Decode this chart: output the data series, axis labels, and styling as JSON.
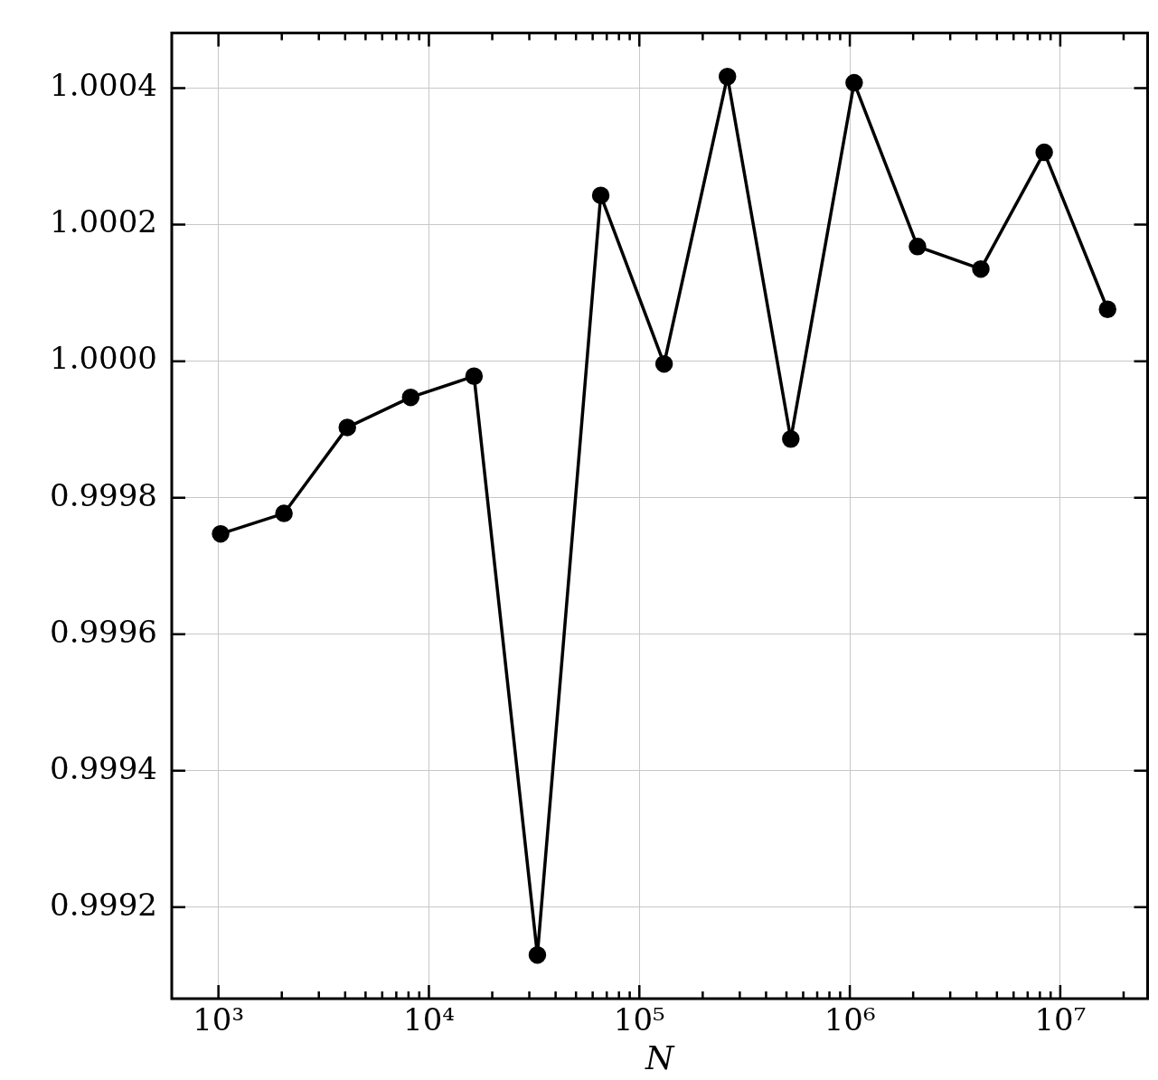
{
  "chart_data": {
    "type": "line",
    "xlabel": "N",
    "x": [
      1024,
      2048,
      4096,
      8192,
      16384,
      32768,
      65536,
      131072,
      262144,
      524288,
      1048576,
      2097152,
      4194304,
      8388608,
      16777216
    ],
    "series": [
      {
        "color": "#000000",
        "values": [
          0.999747,
          0.999777,
          0.999903,
          0.999947,
          0.999978,
          0.99913,
          1.000243,
          0.999996,
          1.000417,
          0.999886,
          1.000408,
          1.000168,
          1.000135,
          1.000306,
          1.000076
        ]
      }
    ],
    "log": "x",
    "marker": "circle",
    "line_style": "solid",
    "grid": true,
    "legend": false,
    "xlim": [
      600,
      26000000
    ],
    "xticks": [
      {
        "value": 1000,
        "label": "10³"
      },
      {
        "value": 2000,
        "label": null
      },
      {
        "value": 3000,
        "label": null
      },
      {
        "value": 4000,
        "label": null
      },
      {
        "value": 5000,
        "label": null
      },
      {
        "value": 6000,
        "label": null
      },
      {
        "value": 7000,
        "label": null
      },
      {
        "value": 8000,
        "label": null
      },
      {
        "value": 9000,
        "label": null
      },
      {
        "value": 10000,
        "label": "10⁴"
      },
      {
        "value": 20000,
        "label": null
      },
      {
        "value": 30000,
        "label": null
      },
      {
        "value": 40000,
        "label": null
      },
      {
        "value": 50000,
        "label": null
      },
      {
        "value": 60000,
        "label": null
      },
      {
        "value": 70000,
        "label": null
      },
      {
        "value": 80000,
        "label": null
      },
      {
        "value": 90000,
        "label": null
      },
      {
        "value": 100000,
        "label": "10⁵"
      },
      {
        "value": 200000,
        "label": null
      },
      {
        "value": 300000,
        "label": null
      },
      {
        "value": 400000,
        "label": null
      },
      {
        "value": 500000,
        "label": null
      },
      {
        "value": 600000,
        "label": null
      },
      {
        "value": 700000,
        "label": null
      },
      {
        "value": 800000,
        "label": null
      },
      {
        "value": 900000,
        "label": null
      },
      {
        "value": 1000000,
        "label": "10⁶"
      },
      {
        "value": 2000000,
        "label": null
      },
      {
        "value": 3000000,
        "label": null
      },
      {
        "value": 4000000,
        "label": null
      },
      {
        "value": 5000000,
        "label": null
      },
      {
        "value": 6000000,
        "label": null
      },
      {
        "value": 7000000,
        "label": null
      },
      {
        "value": 8000000,
        "label": null
      },
      {
        "value": 9000000,
        "label": null
      },
      {
        "value": 10000000,
        "label": "10⁷"
      },
      {
        "value": 20000000,
        "label": null
      }
    ],
    "ylim": [
      0.999066,
      1.000481
    ],
    "yticks": [
      {
        "value": 0.9992,
        "label": "0.9992"
      },
      {
        "value": 0.9994,
        "label": "0.9994"
      },
      {
        "value": 0.9996,
        "label": "0.9996"
      },
      {
        "value": 0.9998,
        "label": "0.9998"
      },
      {
        "value": 1.0,
        "label": "1.0000"
      },
      {
        "value": 1.0002,
        "label": "1.0002"
      },
      {
        "value": 1.0004,
        "label": "1.0004"
      }
    ]
  }
}
